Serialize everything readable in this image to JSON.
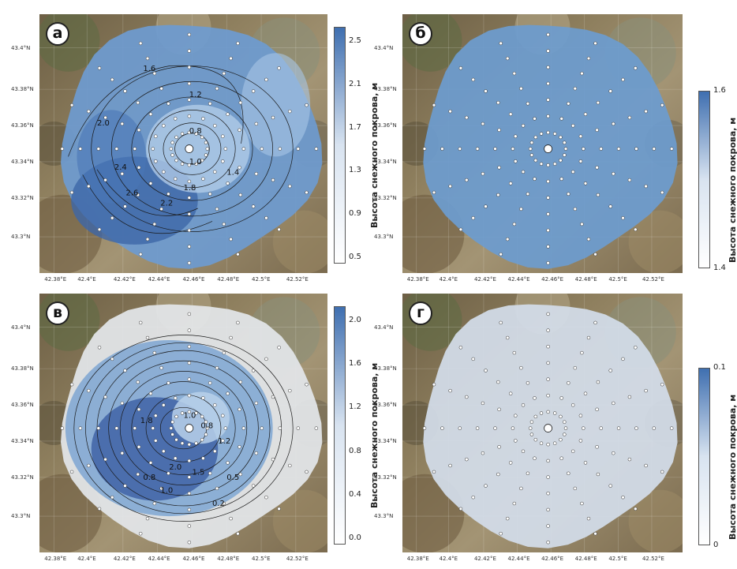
{
  "panels": [
    {
      "letter": "а",
      "colorbar": {
        "ticks": [
          "2.5",
          "2.1",
          "1.7",
          "1.3",
          "0.9",
          "0.5"
        ],
        "label": "Высота снежного покрова, м",
        "colors": [
          "#3f6fb0",
          "#d8e3f0",
          "#ffffff"
        ]
      }
    },
    {
      "letter": "б",
      "colorbar": {
        "ticks": [
          "1.6",
          "1.4"
        ],
        "label": "Высота снежного покрова, м",
        "colors": [
          "#3f6fb0",
          "#d8e3f0",
          "#ffffff"
        ]
      }
    },
    {
      "letter": "в",
      "colorbar": {
        "ticks": [
          "2.0",
          "1.6",
          "1.2",
          "0.8",
          "0.4",
          "0.0"
        ],
        "label": "Высота снежного покрова, м",
        "colors": [
          "#3f6fb0",
          "#d8e3f0",
          "#ffffff"
        ]
      }
    },
    {
      "letter": "г",
      "colorbar": {
        "ticks": [
          "0.1",
          "0"
        ],
        "label": "Высота снежного покрова, м",
        "colors": [
          "#3f6fb0",
          "#d8e3f0",
          "#ffffff"
        ]
      }
    }
  ],
  "axes": {
    "lon_ticks": [
      "42.38°E",
      "42.4°E",
      "42.42°E",
      "42.44°E",
      "42.46°E",
      "42.48°E",
      "42.5°E",
      "42.52°E"
    ],
    "lat_ticks": [
      "43.4°N",
      "43.38°N",
      "43.36°N",
      "43.34°N",
      "43.32°N",
      "43.3°N"
    ]
  },
  "contour_labels_a": [
    "1.6",
    "1.2",
    "0.8",
    "1.0",
    "1.4",
    "2.0",
    "2.4",
    "2.6",
    "2.2",
    "1.8"
  ],
  "contour_labels_c": [
    "1.0",
    "0.8",
    "1.8",
    "1.2",
    "2.0",
    "1.5",
    "0.5",
    "0.8",
    "1.0",
    "0.2"
  ],
  "colors": {
    "snow_dark": "#3a68ad",
    "snow_mid": "#7fa8d6",
    "snow_light": "#cfdff0",
    "terrain": "#8a7a5a"
  }
}
